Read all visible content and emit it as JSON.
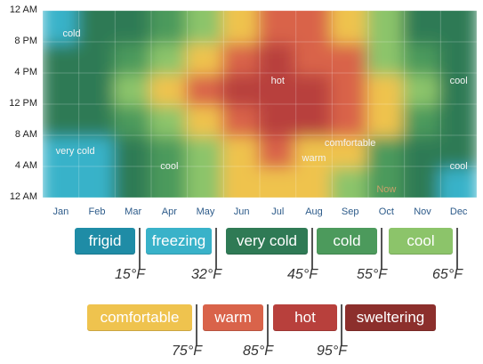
{
  "chart_data": {
    "type": "heatmap",
    "y_labels": [
      "12 AM",
      "8 PM",
      "4 PM",
      "12 PM",
      "8 AM",
      "4 AM",
      "12 AM"
    ],
    "x_labels": [
      "Jan",
      "Feb",
      "Mar",
      "Apr",
      "May",
      "Jun",
      "Jul",
      "Aug",
      "Sep",
      "Oct",
      "Nov",
      "Dec"
    ],
    "row_hours": [
      2,
      6,
      10,
      14,
      18,
      22
    ],
    "temperature_grid_F": [
      [
        26,
        28,
        38,
        48,
        58,
        68,
        72,
        70,
        62,
        50,
        38,
        30
      ],
      [
        28,
        30,
        40,
        52,
        62,
        72,
        76,
        74,
        66,
        54,
        40,
        32
      ],
      [
        36,
        40,
        52,
        64,
        74,
        84,
        88,
        86,
        78,
        66,
        52,
        40
      ],
      [
        40,
        44,
        56,
        68,
        78,
        88,
        92,
        90,
        82,
        70,
        56,
        44
      ],
      [
        36,
        38,
        50,
        62,
        72,
        82,
        86,
        84,
        76,
        62,
        48,
        38
      ],
      [
        30,
        32,
        42,
        54,
        64,
        74,
        78,
        76,
        68,
        56,
        42,
        32
      ]
    ],
    "annotations": [
      {
        "text": "cold",
        "month": "Jan",
        "hour": 21
      },
      {
        "text": "hot",
        "month": "Jul",
        "hour": 15
      },
      {
        "text": "cool",
        "month": "Dec",
        "hour": 15
      },
      {
        "text": "very cold",
        "month": "Jan",
        "hour": 6
      },
      {
        "text": "cool",
        "month": "Apr",
        "hour": 4
      },
      {
        "text": "warm",
        "month": "Aug",
        "hour": 5
      },
      {
        "text": "comfortable",
        "month": "Sep",
        "hour": 7
      },
      {
        "text": "cool",
        "month": "Dec",
        "hour": 4
      },
      {
        "text": "Now",
        "month": "Oct",
        "hour": 1
      }
    ]
  },
  "legend": {
    "row1": [
      {
        "label": "frigid",
        "color": "#1f8ca6"
      },
      {
        "label": "freezing",
        "color": "#39b2c9"
      },
      {
        "label": "very cold",
        "color": "#2f7a55"
      },
      {
        "label": "cold",
        "color": "#4c9a5c"
      },
      {
        "label": "cool",
        "color": "#8cc46a"
      }
    ],
    "row1_thresholds": [
      "15°F",
      "32°F",
      "45°F",
      "55°F",
      "65°F"
    ],
    "row2": [
      {
        "label": "comfortable",
        "color": "#efc34e"
      },
      {
        "label": "warm",
        "color": "#d9634a"
      },
      {
        "label": "hot",
        "color": "#b8403c"
      },
      {
        "label": "sweltering",
        "color": "#8c2f2c"
      }
    ],
    "row2_thresholds": [
      "75°F",
      "85°F",
      "95°F"
    ]
  }
}
